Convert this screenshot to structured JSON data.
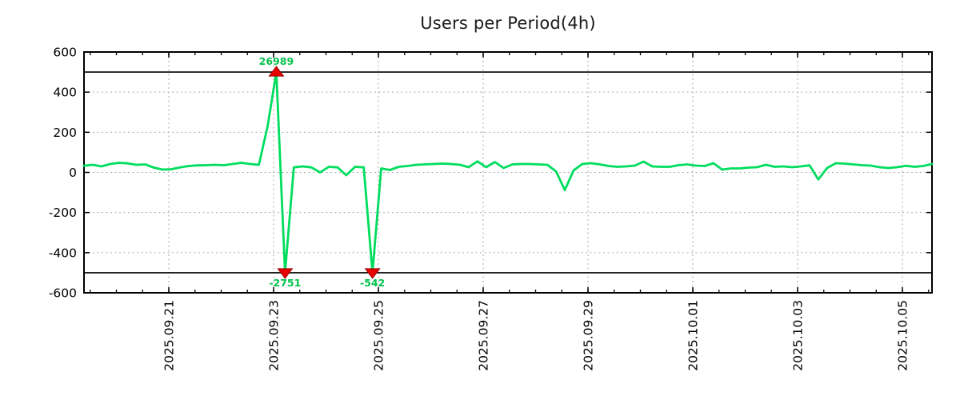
{
  "title": "Users per Period(4h)",
  "colors": {
    "line": "#00dd5e",
    "annotation_text": "#00c24b",
    "marker_fill": "#e60000",
    "marker_edge": "#990000",
    "grid": "#aaaaaa",
    "axis": "#000000",
    "clamp_line": "#000000",
    "tick_label": "#000000",
    "title": "#1a1a1a",
    "background": "#ffffff"
  },
  "chart_data": {
    "type": "line",
    "title": "Users per Period(4h)",
    "interval": "4h",
    "grid": true,
    "legend_position": "none",
    "ylim": [
      -600,
      600
    ],
    "y_tick_step": 200,
    "y_tick_labels": [
      "600",
      "400",
      "200",
      "0",
      "-200",
      "-400",
      "-600"
    ],
    "y_grid_values": [
      400,
      200,
      0,
      -200,
      -400
    ],
    "clamp_bounds": [
      500,
      -500
    ],
    "x_tick_labels": [
      "2025.09.21",
      "2025.09.23",
      "2025.09.25",
      "2025.09.27",
      "2025.09.29",
      "2025.10.01",
      "2025.10.03",
      "2025.10.05"
    ],
    "series": [
      {
        "name": "users",
        "color": "#00dd5e",
        "values": [
          33,
          38,
          30,
          42,
          48,
          45,
          38,
          40,
          24,
          14,
          16,
          25,
          32,
          35,
          36,
          38,
          36,
          42,
          48,
          42,
          38,
          230,
          26989,
          -2751,
          25,
          30,
          25,
          0,
          28,
          25,
          -14,
          28,
          25,
          -542,
          20,
          12,
          28,
          32,
          38,
          40,
          42,
          44,
          42,
          38,
          26,
          55,
          26,
          52,
          22,
          40,
          42,
          42,
          40,
          38,
          5,
          -88,
          10,
          42,
          46,
          40,
          32,
          28,
          30,
          34,
          54,
          30,
          28,
          28,
          36,
          40,
          34,
          32,
          46,
          14,
          20,
          20,
          24,
          26,
          38,
          28,
          30,
          26,
          30,
          35,
          -35,
          22,
          46,
          44,
          40,
          36,
          34,
          26,
          22,
          26,
          33,
          28,
          32,
          42
        ]
      }
    ],
    "annotations": [
      {
        "text": "26989",
        "value": 26989,
        "index": 22,
        "direction": "up"
      },
      {
        "text": "-2751",
        "value": -2751,
        "index": 23,
        "direction": "down"
      },
      {
        "text": "-542",
        "value": -542,
        "index": 33,
        "direction": "down"
      }
    ]
  }
}
